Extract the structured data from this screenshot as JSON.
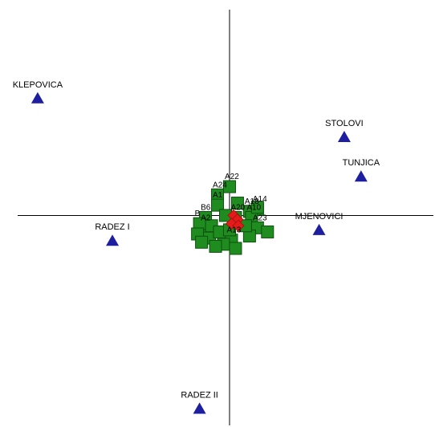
{
  "chart_data": {
    "type": "scatter",
    "title": "",
    "xlabel": "",
    "ylabel": "",
    "xlim": [
      -5.3,
      5.1
    ],
    "ylim": [
      -5.1,
      5.0
    ],
    "grid": false,
    "colors": {
      "sites": "#1e1ea0",
      "species": "#1e8c1e",
      "species_border": "#0f4f0f",
      "centroid": "#e31b1b",
      "axes": "#000000"
    },
    "series": [
      {
        "kind": "sites",
        "marker": "triangle",
        "points": [
          {
            "label": "KLEPOVICA",
            "x": -4.8,
            "y": 2.86
          },
          {
            "label": "STOLOVI",
            "x": 2.87,
            "y": 1.92
          },
          {
            "label": "TUNJICA",
            "x": 3.29,
            "y": 0.96
          },
          {
            "label": "MJENOVICI",
            "x": 2.24,
            "y": -0.34
          },
          {
            "label": "RADEZ I",
            "x": -2.93,
            "y": -0.6
          },
          {
            "label": "RADEZ II",
            "x": -0.75,
            "y": -4.68
          }
        ]
      },
      {
        "kind": "species",
        "marker": "square",
        "points": [
          {
            "label": "A22",
            "x": 0.0,
            "y": 0.7
          },
          {
            "label": "A24",
            "x": -0.3,
            "y": 0.5
          },
          {
            "label": "A1",
            "x": -0.3,
            "y": 0.25
          },
          {
            "label": "A18",
            "x": 0.5,
            "y": 0.1
          },
          {
            "label": "A14",
            "x": 0.7,
            "y": 0.15
          },
          {
            "label": "A10",
            "x": 0.55,
            "y": -0.05
          },
          {
            "label": "A23",
            "x": 0.7,
            "y": -0.3
          },
          {
            "label": "B6",
            "x": -0.6,
            "y": -0.05
          },
          {
            "label": "A2",
            "x": -0.6,
            "y": -0.3
          },
          {
            "label": "B",
            "x": -0.75,
            "y": -0.2
          },
          {
            "label": "A20",
            "x": 0.15,
            "y": -0.05
          },
          {
            "label": "A13",
            "x": 0.05,
            "y": -0.6
          },
          {
            "label": "",
            "x": -0.1,
            "y": 0.0
          },
          {
            "label": "",
            "x": -0.45,
            "y": -0.25
          },
          {
            "label": "",
            "x": -0.8,
            "y": -0.45
          },
          {
            "label": "",
            "x": -0.5,
            "y": -0.55
          },
          {
            "label": "",
            "x": -0.15,
            "y": -0.7
          },
          {
            "label": "",
            "x": 0.15,
            "y": -0.8
          },
          {
            "label": "",
            "x": 0.5,
            "y": -0.5
          },
          {
            "label": "",
            "x": 0.95,
            "y": -0.4
          },
          {
            "label": "",
            "x": 0.7,
            "y": 0.2
          },
          {
            "label": "",
            "x": 0.4,
            "y": -0.25
          },
          {
            "label": "",
            "x": -0.25,
            "y": -0.4
          },
          {
            "label": "",
            "x": 0.2,
            "y": 0.3
          },
          {
            "label": "",
            "x": -0.35,
            "y": -0.75
          },
          {
            "label": "",
            "x": 0.0,
            "y": -0.35
          },
          {
            "label": "",
            "x": -0.7,
            "y": -0.65
          }
        ]
      },
      {
        "kind": "centroids",
        "marker": "diamond",
        "points": [
          {
            "x": 0.1,
            "y": 0.0
          },
          {
            "x": 0.2,
            "y": -0.1
          },
          {
            "x": 0.05,
            "y": -0.2
          },
          {
            "x": 0.22,
            "y": -0.25
          }
        ]
      }
    ]
  }
}
